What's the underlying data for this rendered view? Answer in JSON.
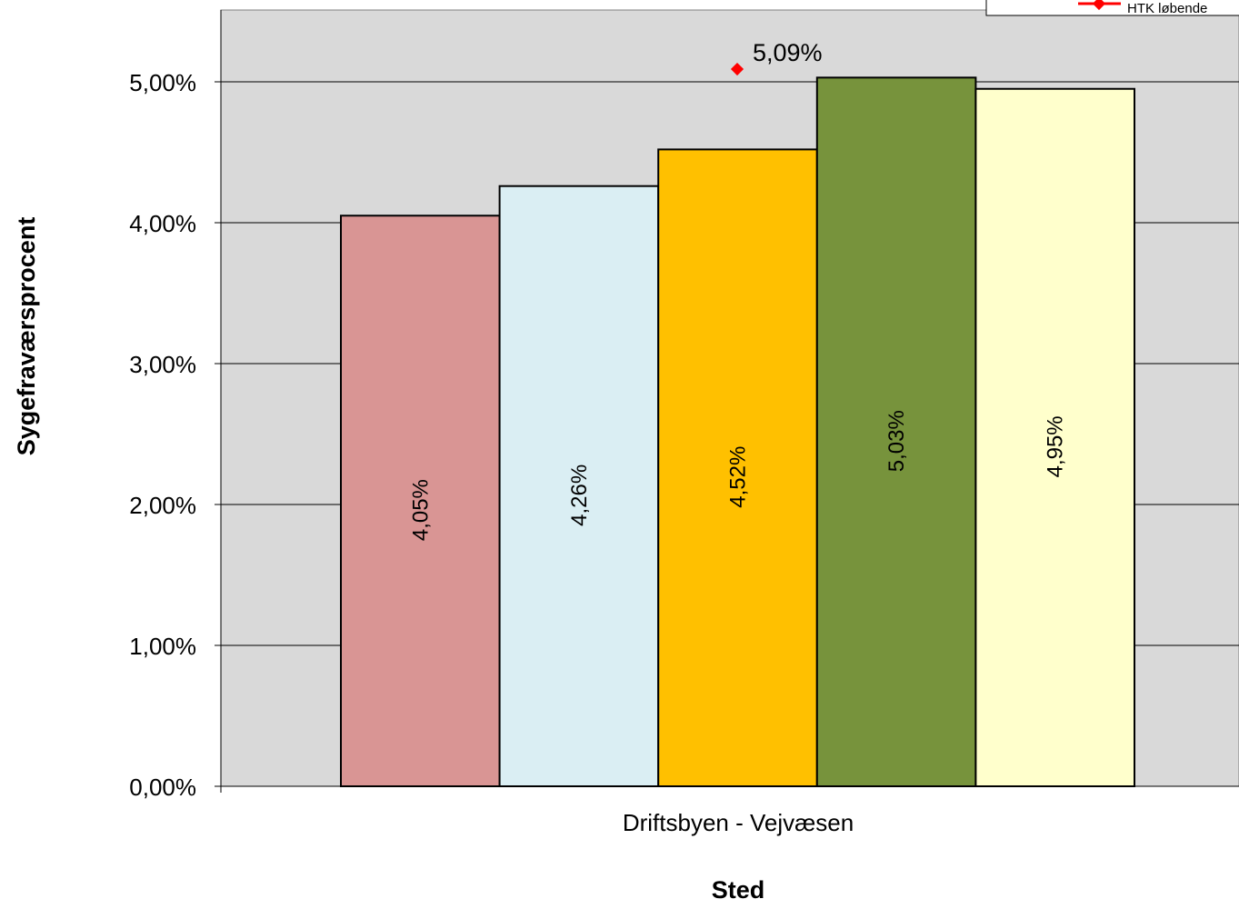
{
  "chart_data": {
    "type": "bar",
    "title": "",
    "xlabel": "Sted",
    "ylabel": "Sygefraværsprocent",
    "categories": [
      "Driftsbyen - Vejvæsen"
    ],
    "ylim": [
      0,
      5.5
    ],
    "yticks": [
      {
        "value": 0,
        "label": "0,00%"
      },
      {
        "value": 1,
        "label": "1,00%"
      },
      {
        "value": 2,
        "label": "2,00%"
      },
      {
        "value": 3,
        "label": "3,00%"
      },
      {
        "value": 4,
        "label": "4,00%"
      },
      {
        "value": 5,
        "label": "5,00%"
      }
    ],
    "grid": true,
    "legend_position": "top-right",
    "series": [
      {
        "values": [
          4.05
        ],
        "label": "4,05%",
        "color": "#D99594"
      },
      {
        "values": [
          4.26
        ],
        "label": "4,26%",
        "color": "#DAEEF3"
      },
      {
        "values": [
          4.52
        ],
        "label": "4,52%",
        "color": "#FFC000"
      },
      {
        "values": [
          5.03
        ],
        "label": "5,03%",
        "color": "#77933C"
      },
      {
        "values": [
          4.95
        ],
        "label": "4,95%",
        "color": "#FFFFCC"
      }
    ],
    "marker_series": {
      "name": "HTK løbende",
      "values": [
        5.09
      ],
      "label": "5,09%",
      "color": "#FF0000"
    },
    "plot_background": "#D9D9D9"
  }
}
